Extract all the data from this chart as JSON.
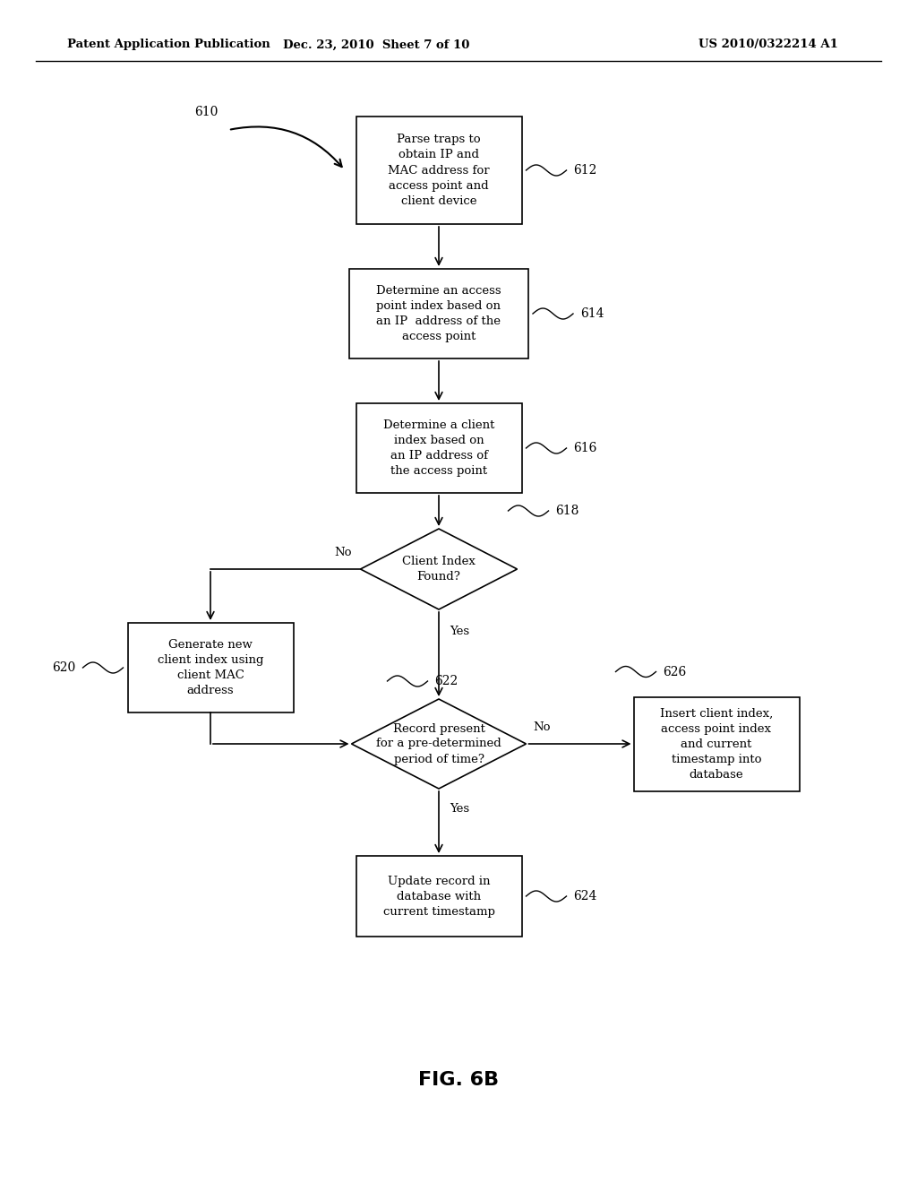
{
  "bg_color": "#ffffff",
  "header_left": "Patent Application Publication",
  "header_mid": "Dec. 23, 2010  Sheet 7 of 10",
  "header_right": "US 2010/0322214 A1",
  "fig_label": "FIG. 6B",
  "font_size_box": 9.5,
  "font_size_label": 10,
  "font_size_header": 9.5,
  "font_size_fig": 16
}
